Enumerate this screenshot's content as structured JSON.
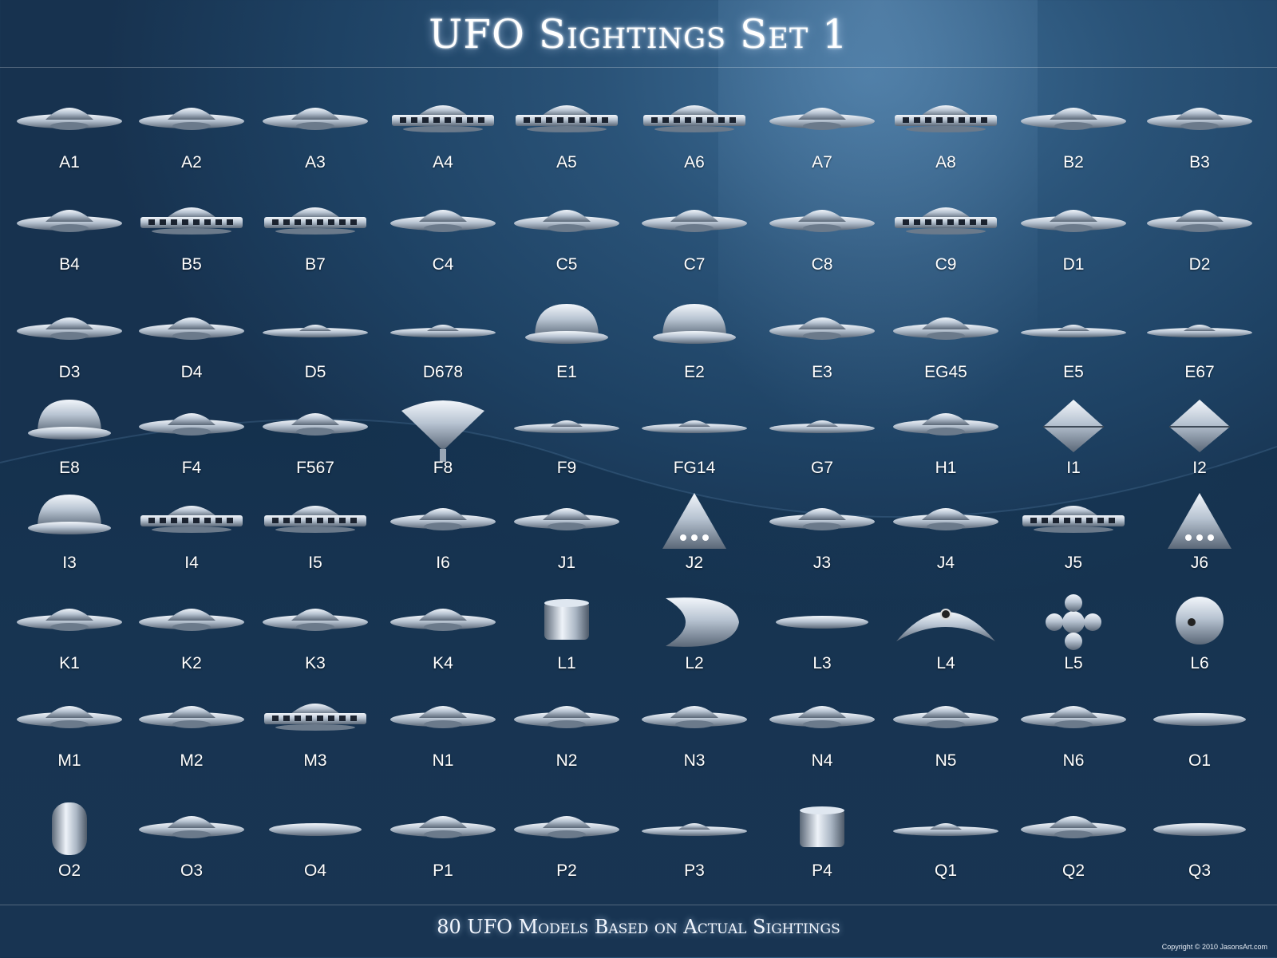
{
  "title": "UFO Sightings Set 1",
  "subtitle": "80 UFO Models Based on Actual Sightings",
  "copyright": "Copyright © 2010 JasonsArt.com",
  "colors": {
    "background": "#1e4264",
    "metal_light": "#e8eef5",
    "metal_dark": "#5b6878",
    "text": "#ffffff"
  },
  "models": [
    {
      "label": "A1",
      "shape": "saucer"
    },
    {
      "label": "A2",
      "shape": "saucer"
    },
    {
      "label": "A3",
      "shape": "saucer"
    },
    {
      "label": "A4",
      "shape": "windowed"
    },
    {
      "label": "A5",
      "shape": "windowed"
    },
    {
      "label": "A6",
      "shape": "windowed"
    },
    {
      "label": "A7",
      "shape": "saucer"
    },
    {
      "label": "A8",
      "shape": "windowed"
    },
    {
      "label": "B2",
      "shape": "saucer"
    },
    {
      "label": "B3",
      "shape": "saucer"
    },
    {
      "label": "B4",
      "shape": "saucer"
    },
    {
      "label": "B5",
      "shape": "windowed"
    },
    {
      "label": "B7",
      "shape": "windowed"
    },
    {
      "label": "C4",
      "shape": "saucer"
    },
    {
      "label": "C5",
      "shape": "saucer"
    },
    {
      "label": "C7",
      "shape": "saucer"
    },
    {
      "label": "C8",
      "shape": "saucer"
    },
    {
      "label": "C9",
      "shape": "windowed"
    },
    {
      "label": "D1",
      "shape": "saucer"
    },
    {
      "label": "D2",
      "shape": "saucer"
    },
    {
      "label": "D3",
      "shape": "saucer"
    },
    {
      "label": "D4",
      "shape": "saucer"
    },
    {
      "label": "D5",
      "shape": "flat"
    },
    {
      "label": "D678",
      "shape": "flat"
    },
    {
      "label": "E1",
      "shape": "dome"
    },
    {
      "label": "E2",
      "shape": "dome"
    },
    {
      "label": "E3",
      "shape": "saucer"
    },
    {
      "label": "EG45",
      "shape": "saucer"
    },
    {
      "label": "E5",
      "shape": "flat"
    },
    {
      "label": "E67",
      "shape": "flat"
    },
    {
      "label": "E8",
      "shape": "dome"
    },
    {
      "label": "F4",
      "shape": "saucer"
    },
    {
      "label": "F567",
      "shape": "saucer"
    },
    {
      "label": "F8",
      "shape": "top"
    },
    {
      "label": "F9",
      "shape": "flat"
    },
    {
      "label": "FG14",
      "shape": "flat"
    },
    {
      "label": "G7",
      "shape": "flat"
    },
    {
      "label": "H1",
      "shape": "saucer"
    },
    {
      "label": "I1",
      "shape": "diamond"
    },
    {
      "label": "I2",
      "shape": "diamond"
    },
    {
      "label": "I3",
      "shape": "dome"
    },
    {
      "label": "I4",
      "shape": "windowed"
    },
    {
      "label": "I5",
      "shape": "windowed"
    },
    {
      "label": "I6",
      "shape": "saucer"
    },
    {
      "label": "J1",
      "shape": "saucer"
    },
    {
      "label": "J2",
      "shape": "triangle"
    },
    {
      "label": "J3",
      "shape": "saucer"
    },
    {
      "label": "J4",
      "shape": "saucer"
    },
    {
      "label": "J5",
      "shape": "windowed"
    },
    {
      "label": "J6",
      "shape": "triangle"
    },
    {
      "label": "K1",
      "shape": "saucer"
    },
    {
      "label": "K2",
      "shape": "saucer"
    },
    {
      "label": "K3",
      "shape": "saucer"
    },
    {
      "label": "K4",
      "shape": "saucer"
    },
    {
      "label": "L1",
      "shape": "cylinder"
    },
    {
      "label": "L2",
      "shape": "crescent"
    },
    {
      "label": "L3",
      "shape": "cigar"
    },
    {
      "label": "L4",
      "shape": "boomerang"
    },
    {
      "label": "L5",
      "shape": "cluster"
    },
    {
      "label": "L6",
      "shape": "sphere"
    },
    {
      "label": "M1",
      "shape": "saucer"
    },
    {
      "label": "M2",
      "shape": "saucer"
    },
    {
      "label": "M3",
      "shape": "windowed"
    },
    {
      "label": "N1",
      "shape": "saucer"
    },
    {
      "label": "N2",
      "shape": "saucer"
    },
    {
      "label": "N3",
      "shape": "saucer"
    },
    {
      "label": "N4",
      "shape": "saucer"
    },
    {
      "label": "N5",
      "shape": "saucer"
    },
    {
      "label": "N6",
      "shape": "saucer"
    },
    {
      "label": "O1",
      "shape": "cigar"
    },
    {
      "label": "O2",
      "shape": "capsule"
    },
    {
      "label": "O3",
      "shape": "saucer"
    },
    {
      "label": "O4",
      "shape": "cigar"
    },
    {
      "label": "P1",
      "shape": "saucer"
    },
    {
      "label": "P2",
      "shape": "saucer"
    },
    {
      "label": "P3",
      "shape": "flat"
    },
    {
      "label": "P4",
      "shape": "cylinder"
    },
    {
      "label": "Q1",
      "shape": "flat"
    },
    {
      "label": "Q2",
      "shape": "saucer"
    },
    {
      "label": "Q3",
      "shape": "cigar"
    }
  ]
}
